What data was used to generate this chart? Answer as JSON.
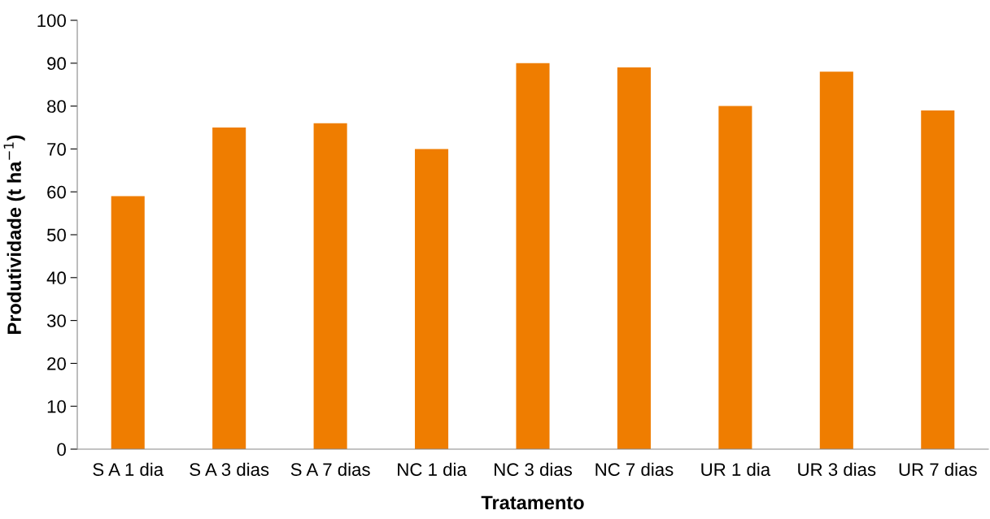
{
  "chart_data": {
    "type": "bar",
    "xlabel": "Tratamento",
    "ylabel": "Produtividade (t ha$^{−1}$)",
    "categories": [
      "S A 1 dia",
      "S A 3 dias",
      "S A 7 dias",
      "NC 1 dia",
      "NC 3 dias",
      "NC 7 dias",
      "UR 1 dia",
      "UR 3 dias",
      "UR 7 dias"
    ],
    "values": [
      59,
      75,
      76,
      70,
      90,
      89,
      80,
      88,
      79
    ],
    "color": "#ef7d00",
    "ylim": [
      0,
      100
    ],
    "yticks": [
      0,
      10,
      20,
      30,
      40,
      50,
      60,
      70,
      80,
      90,
      100
    ],
    "grid": false,
    "legend": false
  }
}
